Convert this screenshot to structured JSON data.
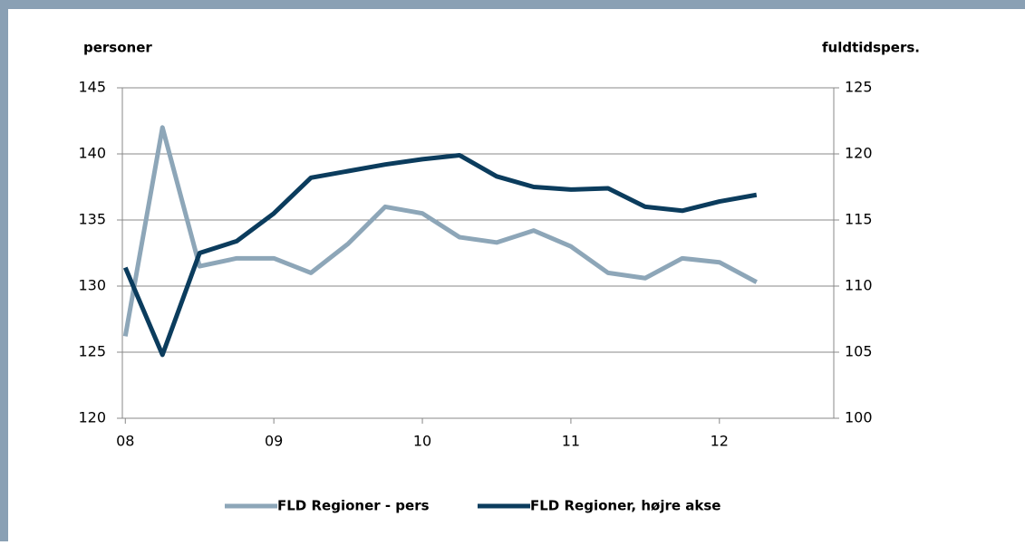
{
  "chart_data": {
    "type": "line",
    "y_label": "personer",
    "y2_label": "fuldtidspers.",
    "x": [
      2008,
      2008.25,
      2008.5,
      2008.75,
      2009,
      2009.25,
      2009.5,
      2009.75,
      2010,
      2010.25,
      2010.5,
      2010.75,
      2011,
      2011.25,
      2011.5,
      2011.75,
      2012,
      2012.25
    ],
    "xlim": [
      2007.98,
      2012.77
    ],
    "xticks": [
      {
        "value": 2008,
        "label": "08"
      },
      {
        "value": 2009,
        "label": "09"
      },
      {
        "value": 2010,
        "label": "10"
      },
      {
        "value": 2011,
        "label": "11"
      },
      {
        "value": 2012,
        "label": "12"
      }
    ],
    "ylim": [
      120,
      145
    ],
    "yticks": [
      120,
      125,
      130,
      135,
      140,
      145
    ],
    "y2lim": [
      100,
      125
    ],
    "y2ticks": [
      100,
      105,
      110,
      115,
      120,
      125
    ],
    "grid": true,
    "legend": "bottom",
    "series": [
      {
        "name": "FLD Regioner - pers",
        "color": "#8da6b8",
        "values": [
          126.2,
          142.0,
          131.5,
          132.1,
          132.1,
          131.0,
          133.2,
          136.0,
          135.5,
          133.7,
          133.3,
          134.2,
          133.0,
          131.0,
          130.6,
          132.1,
          131.8,
          130.3
        ]
      },
      {
        "name": "FLD Regioner, højre akse",
        "color": "#0b3c5d",
        "axis": "y2",
        "values": [
          111.4,
          104.8,
          112.5,
          113.4,
          115.5,
          118.2,
          118.7,
          119.2,
          119.6,
          119.9,
          118.3,
          117.5,
          117.3,
          117.4,
          116.0,
          115.7,
          116.4,
          116.9
        ]
      }
    ]
  }
}
